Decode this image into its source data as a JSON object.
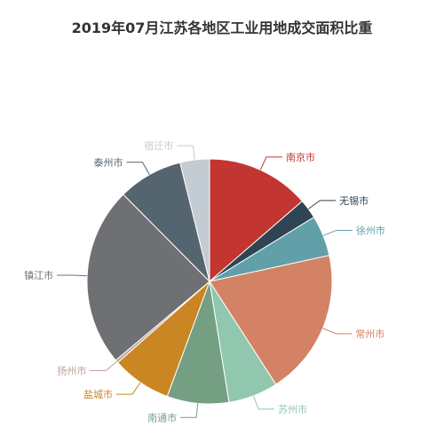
{
  "chart_data": {
    "type": "pie",
    "title": "2019年07月江苏各地区工业用地成交面积比重",
    "start_angle_deg": 90,
    "slices": [
      {
        "name": "南京市",
        "value": 13.7,
        "color": "#c23531"
      },
      {
        "name": "无锡市",
        "value": 2.6,
        "color": "#2f4554"
      },
      {
        "name": "徐州市",
        "value": 5.4,
        "color": "#61a0a8"
      },
      {
        "name": "常州市",
        "value": 19.4,
        "color": "#d48265"
      },
      {
        "name": "苏州市",
        "value": 6.6,
        "color": "#91c7ae"
      },
      {
        "name": "南通市",
        "value": 8.2,
        "color": "#749f83"
      },
      {
        "name": "盐城市",
        "value": 7.9,
        "color": "#ca8622"
      },
      {
        "name": "扬州市",
        "value": 0.4,
        "color": "#bda29a"
      },
      {
        "name": "镇江市",
        "value": 23.8,
        "color": "#6e7074"
      },
      {
        "name": "泰州市",
        "value": 8.6,
        "color": "#546570"
      },
      {
        "name": "宿迁市",
        "value": 3.9,
        "color": "#c4ccd3"
      }
    ]
  }
}
